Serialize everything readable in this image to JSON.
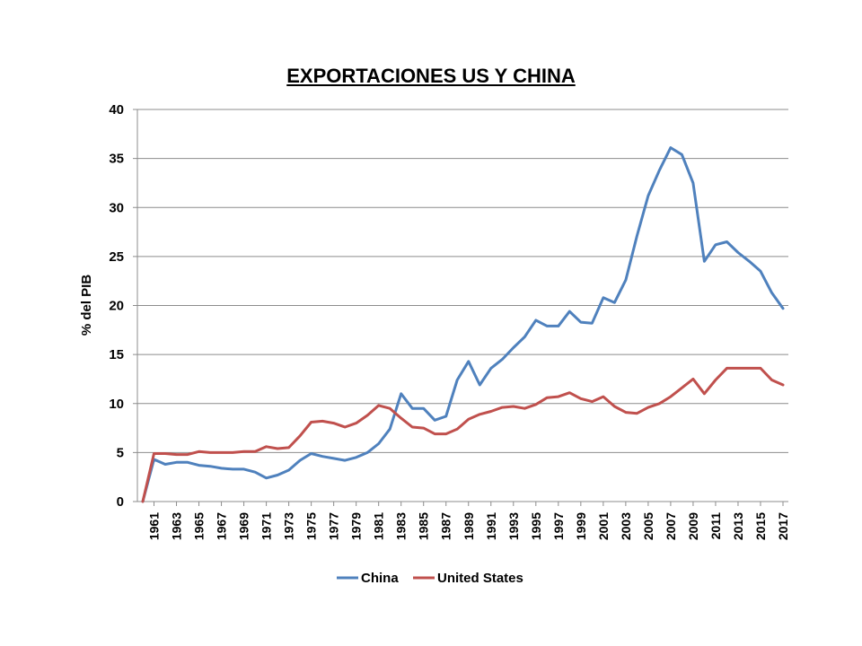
{
  "chart_data": {
    "type": "line",
    "title": "EXPORTACIONES US Y CHINA",
    "xlabel": "",
    "ylabel": "% del PIB",
    "ylim": [
      0,
      40
    ],
    "yticks": [
      0,
      5,
      10,
      15,
      20,
      25,
      30,
      35,
      40
    ],
    "grid": true,
    "legend_position": "bottom",
    "x": [
      1960,
      1961,
      1962,
      1963,
      1964,
      1965,
      1966,
      1967,
      1968,
      1969,
      1970,
      1971,
      1972,
      1973,
      1974,
      1975,
      1976,
      1977,
      1978,
      1979,
      1980,
      1981,
      1982,
      1983,
      1984,
      1985,
      1986,
      1987,
      1988,
      1989,
      1990,
      1991,
      1992,
      1993,
      1994,
      1995,
      1996,
      1997,
      1998,
      1999,
      2000,
      2001,
      2002,
      2003,
      2004,
      2005,
      2006,
      2007,
      2008,
      2009,
      2010,
      2011,
      2012,
      2013,
      2014,
      2015,
      2016,
      2017
    ],
    "xtick_labels": [
      "1961",
      "1963",
      "1965",
      "1967",
      "1969",
      "1971",
      "1973",
      "1975",
      "1977",
      "1979",
      "1981",
      "1983",
      "1985",
      "1987",
      "1989",
      "1991",
      "1993",
      "1995",
      "1997",
      "1999",
      "2001",
      "2003",
      "2005",
      "2007",
      "2009",
      "2011",
      "2013",
      "2015",
      "2017"
    ],
    "series": [
      {
        "name": "China",
        "color": "#4F81BD",
        "values": [
          0,
          4.3,
          3.8,
          4.0,
          4.0,
          3.7,
          3.6,
          3.4,
          3.3,
          3.3,
          3.0,
          2.4,
          2.7,
          3.2,
          4.2,
          4.9,
          4.6,
          4.4,
          4.2,
          4.5,
          5.0,
          5.9,
          7.4,
          11.0,
          9.5,
          9.5,
          8.3,
          8.7,
          12.4,
          14.3,
          11.9,
          13.6,
          14.5,
          15.7,
          16.8,
          18.5,
          17.9,
          17.9,
          19.4,
          18.3,
          18.2,
          20.8,
          20.3,
          22.6,
          27.1,
          31.2,
          33.8,
          36.1,
          35.4,
          32.5,
          24.5,
          26.2,
          26.5,
          25.4,
          24.5,
          23.5,
          21.3,
          19.7
        ]
      },
      {
        "name": "United States",
        "color": "#C0504D",
        "values": [
          0,
          4.9,
          4.9,
          4.8,
          4.8,
          5.1,
          5.0,
          5.0,
          5.0,
          5.1,
          5.1,
          5.6,
          5.4,
          5.5,
          6.7,
          8.1,
          8.2,
          8.0,
          7.6,
          8.0,
          8.8,
          9.8,
          9.5,
          8.5,
          7.6,
          7.5,
          6.9,
          6.9,
          7.4,
          8.4,
          8.9,
          9.2,
          9.6,
          9.7,
          9.5,
          9.9,
          10.6,
          10.7,
          11.1,
          10.5,
          10.2,
          10.7,
          9.7,
          9.1,
          9.0,
          9.6,
          10.0,
          10.7,
          11.6,
          12.5,
          11.0,
          12.4,
          13.6,
          13.6,
          13.6,
          13.6,
          12.4,
          11.9
        ]
      }
    ]
  }
}
